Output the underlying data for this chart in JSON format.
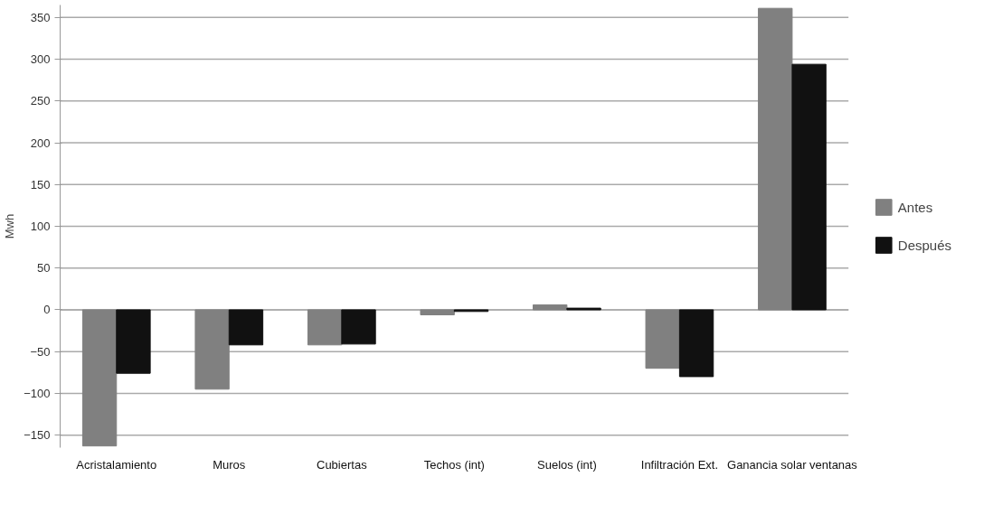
{
  "chart_data": {
    "type": "bar",
    "ylabel": "Mwh",
    "categories": [
      "Acristalamiento",
      "Muros",
      "Cubiertas",
      "Techos (int)",
      "Suelos (int)",
      "Infiltración Ext.",
      "Ganancia solar ventanas"
    ],
    "series": [
      {
        "name": "Antes",
        "color": "#808080",
        "values": [
          -163,
          -95,
          -42,
          -6,
          6,
          -70,
          361
        ]
      },
      {
        "name": "Después",
        "color": "#111111",
        "values": [
          -76,
          -42,
          -41,
          -2,
          2,
          -80,
          294
        ]
      }
    ],
    "ylim": [
      -165,
      365
    ],
    "yticks": [
      -150,
      -100,
      -50,
      0,
      50,
      100,
      150,
      200,
      250,
      300,
      350
    ],
    "grid": "y",
    "legend": "right"
  }
}
